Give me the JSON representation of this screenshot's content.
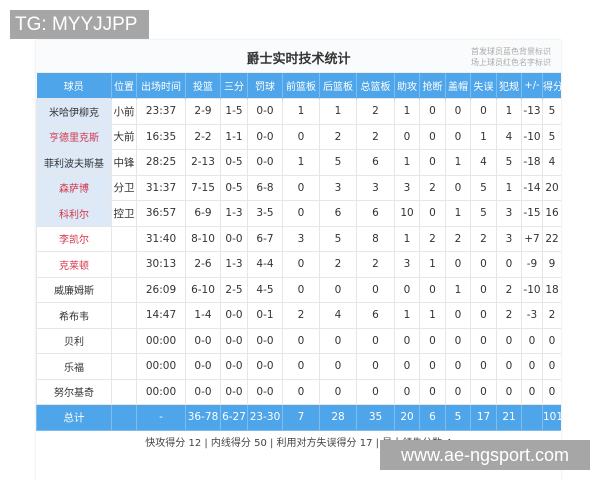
{
  "watermark_top": "TG: MYYJJPP",
  "watermark_bottom": "www.ae-ngsport.com",
  "title": "爵士实时技术统计",
  "legend": [
    "首发球员蓝色背景标识",
    "场上球员红色名字标识"
  ],
  "colors": {
    "header": "#4ea5e9",
    "starter_bg": "#dde9f7",
    "on_court_name": "#d2374a"
  },
  "columns": [
    "球员",
    "位置",
    "出场时间",
    "投篮",
    "三分",
    "罚球",
    "前篮板",
    "后篮板",
    "总篮板",
    "助攻",
    "抢断",
    "盖帽",
    "失误",
    "犯规",
    "+/-",
    "得分"
  ],
  "rows": [
    {
      "starter": true,
      "on_court": false,
      "cells": [
        "米哈伊柳克",
        "小前",
        "23:37",
        "2-9",
        "1-5",
        "0-0",
        "1",
        "1",
        "2",
        "1",
        "0",
        "0",
        "0",
        "1",
        "-13",
        "5"
      ]
    },
    {
      "starter": true,
      "on_court": true,
      "cells": [
        "亨德里克斯",
        "大前",
        "16:35",
        "2-2",
        "1-1",
        "0-0",
        "0",
        "2",
        "2",
        "0",
        "0",
        "0",
        "1",
        "4",
        "-10",
        "5"
      ]
    },
    {
      "starter": true,
      "on_court": false,
      "cells": [
        "菲利波夫斯基",
        "中锋",
        "28:25",
        "2-13",
        "0-5",
        "0-0",
        "1",
        "5",
        "6",
        "1",
        "0",
        "1",
        "4",
        "5",
        "-18",
        "4"
      ]
    },
    {
      "starter": true,
      "on_court": true,
      "cells": [
        "森萨博",
        "分卫",
        "31:37",
        "7-15",
        "0-5",
        "6-8",
        "0",
        "3",
        "3",
        "3",
        "2",
        "0",
        "5",
        "1",
        "-14",
        "20"
      ]
    },
    {
      "starter": true,
      "on_court": true,
      "cells": [
        "科利尔",
        "控卫",
        "36:57",
        "6-9",
        "1-3",
        "3-5",
        "0",
        "6",
        "6",
        "10",
        "0",
        "1",
        "5",
        "3",
        "-15",
        "16"
      ]
    },
    {
      "starter": false,
      "on_court": true,
      "cells": [
        "李凯尔",
        "",
        "31:40",
        "8-10",
        "0-0",
        "6-7",
        "3",
        "5",
        "8",
        "1",
        "2",
        "2",
        "2",
        "3",
        "+7",
        "22"
      ]
    },
    {
      "starter": false,
      "on_court": true,
      "cells": [
        "克莱顿",
        "",
        "30:13",
        "2-6",
        "1-3",
        "4-4",
        "0",
        "2",
        "2",
        "3",
        "1",
        "0",
        "0",
        "0",
        "-9",
        "9"
      ]
    },
    {
      "starter": false,
      "on_court": false,
      "cells": [
        "威廉姆斯",
        "",
        "26:09",
        "6-10",
        "2-5",
        "4-5",
        "0",
        "0",
        "0",
        "0",
        "0",
        "1",
        "0",
        "2",
        "-10",
        "18"
      ]
    },
    {
      "starter": false,
      "on_court": false,
      "cells": [
        "希布韦",
        "",
        "14:47",
        "1-4",
        "0-0",
        "0-1",
        "2",
        "4",
        "6",
        "1",
        "1",
        "0",
        "0",
        "2",
        "-3",
        "2"
      ]
    },
    {
      "starter": false,
      "on_court": false,
      "cells": [
        "贝利",
        "",
        "00:00",
        "0-0",
        "0-0",
        "0-0",
        "0",
        "0",
        "0",
        "0",
        "0",
        "0",
        "0",
        "0",
        "0",
        "0"
      ]
    },
    {
      "starter": false,
      "on_court": false,
      "cells": [
        "乐福",
        "",
        "00:00",
        "0-0",
        "0-0",
        "0-0",
        "0",
        "0",
        "0",
        "0",
        "0",
        "0",
        "0",
        "0",
        "0",
        "0"
      ]
    },
    {
      "starter": false,
      "on_court": false,
      "cells": [
        "努尔基奇",
        "",
        "00:00",
        "0-0",
        "0-0",
        "0-0",
        "0",
        "0",
        "0",
        "0",
        "0",
        "0",
        "0",
        "0",
        "0",
        "0"
      ]
    }
  ],
  "total": [
    "总计",
    "",
    "-",
    "36-78",
    "6-27",
    "23-30",
    "7",
    "28",
    "35",
    "20",
    "6",
    "5",
    "17",
    "21",
    "",
    "101"
  ],
  "footer": "快攻得分 12 | 内线得分 50 | 利用对方失误得分 17 | 最大领先分数 4"
}
